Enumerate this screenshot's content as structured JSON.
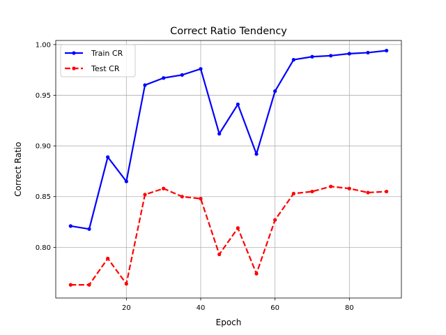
{
  "chart_data": {
    "type": "line",
    "title": "Correct Ratio Tendency",
    "xlabel": "Epoch",
    "ylabel": "Correct Ratio",
    "xlim": [
      1,
      94
    ],
    "ylim": [
      0.75,
      1.004
    ],
    "xticks": [
      20,
      40,
      60,
      80
    ],
    "yticks": [
      0.8,
      0.85,
      0.9,
      0.95,
      1.0
    ],
    "xtick_labels": [
      "20",
      "40",
      "60",
      "80"
    ],
    "ytick_labels": [
      "0.80",
      "0.85",
      "0.90",
      "0.95",
      "1.00"
    ],
    "grid": true,
    "legend_position": "top-left",
    "x": [
      5,
      10,
      15,
      20,
      25,
      30,
      35,
      40,
      45,
      50,
      55,
      60,
      65,
      70,
      75,
      80,
      85,
      90
    ],
    "series": [
      {
        "name": "Train CR",
        "color": "#0000ff",
        "line_style": "solid",
        "values": [
          0.821,
          0.818,
          0.889,
          0.865,
          0.96,
          0.967,
          0.97,
          0.976,
          0.912,
          0.941,
          0.892,
          0.954,
          0.985,
          0.988,
          0.989,
          0.991,
          0.992,
          0.994
        ]
      },
      {
        "name": "Test CR",
        "color": "#ff0000",
        "line_style": "dashed",
        "values": [
          0.763,
          0.763,
          0.789,
          0.764,
          0.852,
          0.858,
          0.85,
          0.848,
          0.793,
          0.819,
          0.774,
          0.827,
          0.853,
          0.855,
          0.86,
          0.858,
          0.854,
          0.855
        ]
      }
    ]
  }
}
